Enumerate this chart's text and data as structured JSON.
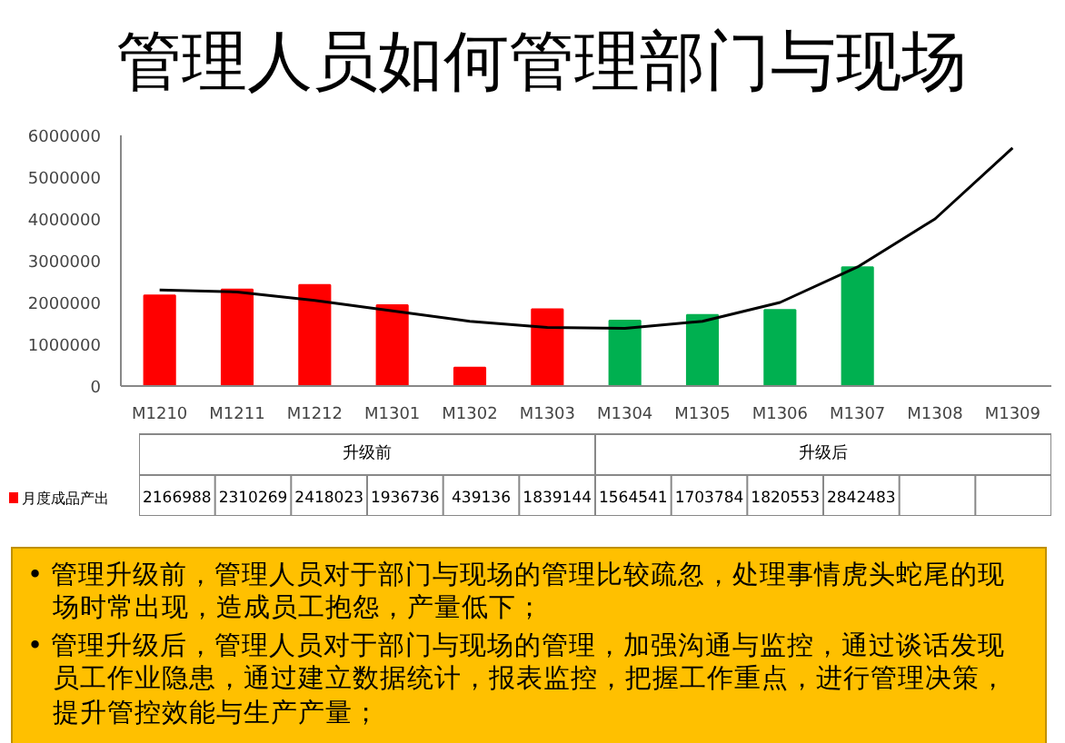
{
  "chart_data": {
    "type": "bar",
    "title": "管理人员如何管理部门与现场",
    "categories": [
      "M1210",
      "M1211",
      "M1212",
      "M1301",
      "M1302",
      "M1303",
      "M1304",
      "M1305",
      "M1306",
      "M1307",
      "M1308",
      "M1309"
    ],
    "series": [
      {
        "name": "月度成品产出",
        "color": "#ff0000",
        "value_labels": [
          "2166988",
          "2310269",
          "2418023",
          "1936736",
          "439136",
          "1839144",
          "1564541",
          "1703784",
          "1820553",
          "2842483",
          null,
          null
        ],
        "colors": [
          "#ff0000",
          "#ff0000",
          "#ff0000",
          "#ff0000",
          "#ff0000",
          "#ff0000",
          "#00b050",
          "#00b050",
          "#00b050",
          "#00b050",
          "#00b050",
          "#00b050"
        ],
        "values": [
          2166988,
          2310269,
          2418023,
          1936736,
          439136,
          1839144,
          1564541,
          1703784,
          1820553,
          2842483,
          null,
          null
        ]
      },
      {
        "type": "line",
        "color": "#000000",
        "x": [
          "M1210",
          "M1211",
          "M1212",
          "M1301",
          "M1302",
          "M1303",
          "M1304",
          "M1305",
          "M1306",
          "M1307",
          "M1308",
          "M1309"
        ],
        "values": [
          2300000,
          2250000,
          2050000,
          1800000,
          1550000,
          1400000,
          1380000,
          1550000,
          2000000,
          2850000,
          4000000,
          5700000
        ]
      }
    ],
    "ylim": [
      0,
      6000000
    ],
    "yticks": [
      0,
      1000000,
      2000000,
      3000000,
      4000000,
      5000000,
      6000000
    ],
    "grid": false,
    "legend": "bottom",
    "annotations": [
      "升级前",
      "升级后",
      "• 管理升级前，管理人员对于部门与现场的管理比较疏忽，处理事情虎头蛇尾的现场时常出现，造成员工抱怨，产量低下；",
      "• 管理升级后，管理人员对于部门与现场的管理，加强沟通与监控，通过谈话发现员工作业隐患，通过建立数据统计，报表监控，把握工作重点，进行管理决策，提升管控效能与生产产量；"
    ]
  }
}
